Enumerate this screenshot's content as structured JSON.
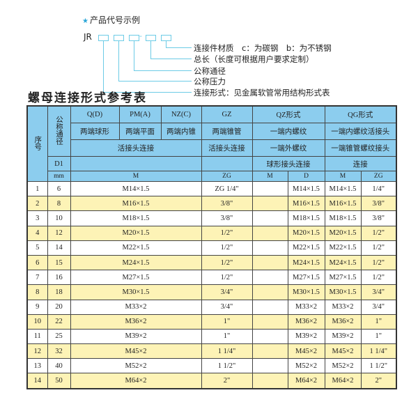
{
  "legend": {
    "star_icon": "star",
    "title": "产品代号示例",
    "code_prefix": "JR",
    "dash": "-",
    "labels": [
      "连接件材质　c：为碳钢　b：为不锈钢",
      "总长（长度可根据用户要求定制）",
      "公称通径",
      "公称压力",
      "连接形式：见金属软管常用结构形式表"
    ],
    "line_color": "#6ccbe6"
  },
  "table_title": "螺母连接形式参考表",
  "colors": {
    "header_bg": "#8ccdee",
    "alt_row_bg": "#fdf3b6"
  },
  "header": {
    "seq": "序号",
    "dn": "公称通径",
    "d1": "D1",
    "mm": "mm",
    "q": "Q(D)",
    "pm": "PM(A)",
    "nz": "NZ(C)",
    "gz": "GZ",
    "qz": "QZ形式",
    "qg": "QG形式",
    "q_desc": "两端球形",
    "pm_desc": "两端平面",
    "nz_desc": "两端内锥",
    "gz_desc": "两端锥管",
    "qz_desc1": "一端内螺纹",
    "qg_desc1": "一端内螺纹活接头",
    "union": "活接头连接",
    "gz_union": "活接头连接",
    "qz_desc2": "一端外螺纹",
    "qg_desc2": "一端锥管螺纹接头",
    "qz_desc3": "球形接头连接",
    "qg_desc3": "连接",
    "m": "M",
    "zg": "ZG",
    "qz_m": "M",
    "qz_d": "D",
    "qg_m": "M",
    "qg_zg": "ZG"
  },
  "rows": [
    {
      "no": "1",
      "dn": "6",
      "m": "M14×1.5",
      "zg": "ZG 1/4\"",
      "qz_m": "",
      "qz_d": "M14×1.5",
      "qg_m": "M14×1.5",
      "qg_zg": "1/4\""
    },
    {
      "no": "2",
      "dn": "8",
      "m": "M16×1.5",
      "zg": "3/8\"",
      "qz_m": "",
      "qz_d": "M16×1.5",
      "qg_m": "M16×1.5",
      "qg_zg": "3/8\""
    },
    {
      "no": "3",
      "dn": "10",
      "m": "M18×1.5",
      "zg": "3/8\"",
      "qz_m": "",
      "qz_d": "M18×1.5",
      "qg_m": "M18×1.5",
      "qg_zg": "3/8\""
    },
    {
      "no": "4",
      "dn": "12",
      "m": "M20×1.5",
      "zg": "1/2\"",
      "qz_m": "",
      "qz_d": "M20×1.5",
      "qg_m": "M20×1.5",
      "qg_zg": "1/2\""
    },
    {
      "no": "5",
      "dn": "14",
      "m": "M22×1.5",
      "zg": "1/2\"",
      "qz_m": "",
      "qz_d": "M22×1.5",
      "qg_m": "M22×1.5",
      "qg_zg": "1/2\""
    },
    {
      "no": "6",
      "dn": "15",
      "m": "M24×1.5",
      "zg": "1/2\"",
      "qz_m": "",
      "qz_d": "M24×1.5",
      "qg_m": "M24×1.5",
      "qg_zg": "1/2\""
    },
    {
      "no": "7",
      "dn": "16",
      "m": "M27×1.5",
      "zg": "1/2\"",
      "qz_m": "",
      "qz_d": "M27×1.5",
      "qg_m": "M27×1.5",
      "qg_zg": "1/2\""
    },
    {
      "no": "8",
      "dn": "18",
      "m": "M30×1.5",
      "zg": "3/4\"",
      "qz_m": "",
      "qz_d": "M30×1.5",
      "qg_m": "M30×1.5",
      "qg_zg": "3/4\""
    },
    {
      "no": "9",
      "dn": "20",
      "m": "M33×2",
      "zg": "3/4\"",
      "qz_m": "",
      "qz_d": "M33×2",
      "qg_m": "M33×2",
      "qg_zg": "3/4\""
    },
    {
      "no": "10",
      "dn": "22",
      "m": "M36×2",
      "zg": "1\"",
      "qz_m": "",
      "qz_d": "M36×2",
      "qg_m": "M36×2",
      "qg_zg": "1\""
    },
    {
      "no": "11",
      "dn": "25",
      "m": "M39×2",
      "zg": "1\"",
      "qz_m": "",
      "qz_d": "M39×2",
      "qg_m": "M39×2",
      "qg_zg": "1\""
    },
    {
      "no": "12",
      "dn": "32",
      "m": "M45×2",
      "zg": "1 1/4\"",
      "qz_m": "",
      "qz_d": "M45×2",
      "qg_m": "M45×2",
      "qg_zg": "1 1/4\""
    },
    {
      "no": "13",
      "dn": "40",
      "m": "M52×2",
      "zg": "1 1/2\"",
      "qz_m": "",
      "qz_d": "M52×2",
      "qg_m": "M52×2",
      "qg_zg": "1 1/2\""
    },
    {
      "no": "14",
      "dn": "50",
      "m": "M64×2",
      "zg": "2\"",
      "qz_m": "",
      "qz_d": "M64×2",
      "qg_m": "M64×2",
      "qg_zg": "2\""
    }
  ]
}
